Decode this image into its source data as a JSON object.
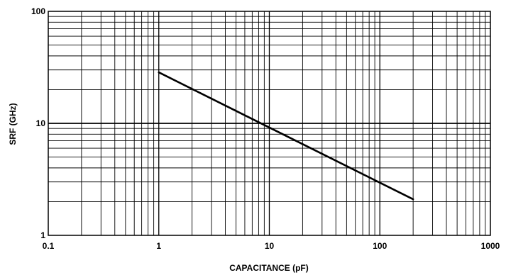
{
  "chart_data": {
    "type": "line",
    "title": "",
    "xlabel": "CAPACITANCE (pF)",
    "ylabel": "SRF (GHz)",
    "x_scale": "log",
    "y_scale": "log",
    "xlim": [
      0.1,
      1000
    ],
    "ylim": [
      1,
      100
    ],
    "grid": true,
    "x_tick_labels": [
      "0.1",
      "1",
      "10",
      "100",
      "1000"
    ],
    "y_tick_labels": [
      "1",
      "10",
      "100"
    ],
    "series": [
      {
        "x": [
          1,
          200
        ],
        "y": [
          28.5,
          2.1
        ]
      }
    ],
    "colors": {
      "grid": "#000000",
      "line": "#000000",
      "background": "#ffffff"
    }
  }
}
